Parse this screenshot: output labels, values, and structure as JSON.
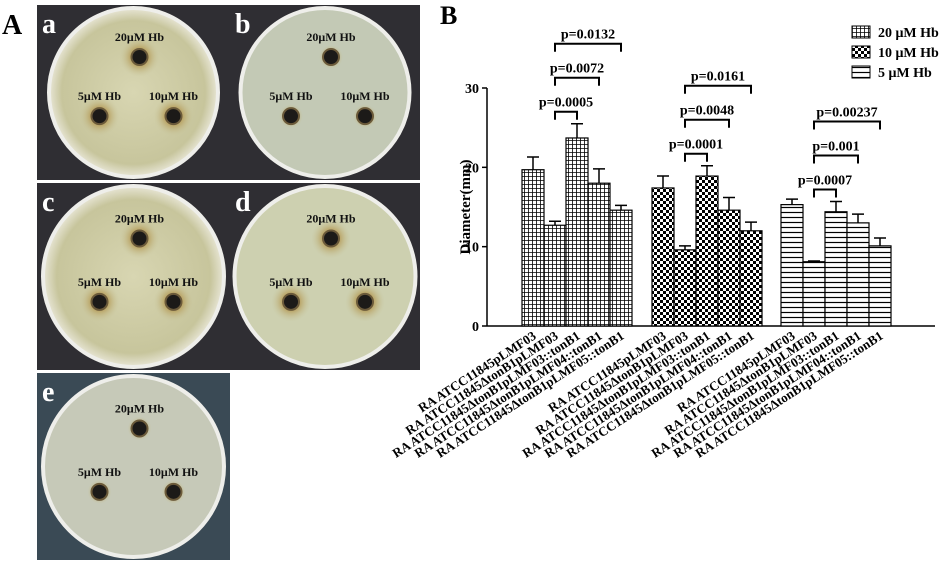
{
  "panel_a": {
    "label": "A",
    "plates": [
      {
        "label": "a",
        "wells": [
          "20μM Hb",
          "5μM Hb",
          "10μM Hb"
        ]
      },
      {
        "label": "b",
        "wells": [
          "20μM Hb",
          "5μM Hb",
          "10μM Hb"
        ]
      },
      {
        "label": "c",
        "wells": [
          "20μM Hb",
          "5μM Hb",
          "10μM Hb"
        ]
      },
      {
        "label": "d",
        "wells": [
          "20μM Hb",
          "5μM Hb",
          "10μM Hb"
        ]
      },
      {
        "label": "e",
        "wells": [
          "20μM Hb",
          "5μM Hb",
          "10μM Hb"
        ]
      }
    ]
  },
  "chart_data": {
    "type": "bar",
    "panel_label": "B",
    "y_label": "Diameter(mm)",
    "categories": [
      "RA ATCC11845pLMF03",
      "RA ATCC11845ΔtonB1pLMF03",
      "RA ATCC11845ΔtonB1pLMF03::tonB1",
      "RA ATCC11845ΔtonB1pLMF04::tonB1",
      "RA ATCC11845ΔtonB1pLMF05::tonB1"
    ],
    "series": [
      {
        "name": "20 μM Hb",
        "color": "#000000",
        "pattern": "crosshatch",
        "values": [
          19.7,
          12.7,
          23.7,
          18.0,
          14.6
        ],
        "errors": [
          1.6,
          0.5,
          1.8,
          1.8,
          0.6
        ],
        "significance": [
          "p=0.0005",
          "p=0.0072",
          "p=0.0132"
        ]
      },
      {
        "name": "10 μM Hb",
        "color": "#000000",
        "pattern": "checker",
        "values": [
          17.4,
          9.6,
          18.9,
          14.6,
          12.0
        ],
        "errors": [
          1.5,
          0.5,
          1.3,
          1.6,
          1.1
        ],
        "significance": [
          "p=0.0001",
          "p=0.0048",
          "p=0.0161"
        ]
      },
      {
        "name": "5 μM Hb",
        "color": "#000000",
        "pattern": "hlines",
        "values": [
          15.3,
          8.1,
          14.4,
          13.0,
          10.1
        ],
        "errors": [
          0.7,
          0.1,
          1.3,
          1.1,
          1.0
        ],
        "significance": [
          "p=0.0007",
          "p=0.001",
          "p=0.00237"
        ]
      }
    ],
    "ylim": [
      0,
      30
    ],
    "yticks": [
      0,
      10,
      20,
      30
    ],
    "legend": "top-right"
  }
}
